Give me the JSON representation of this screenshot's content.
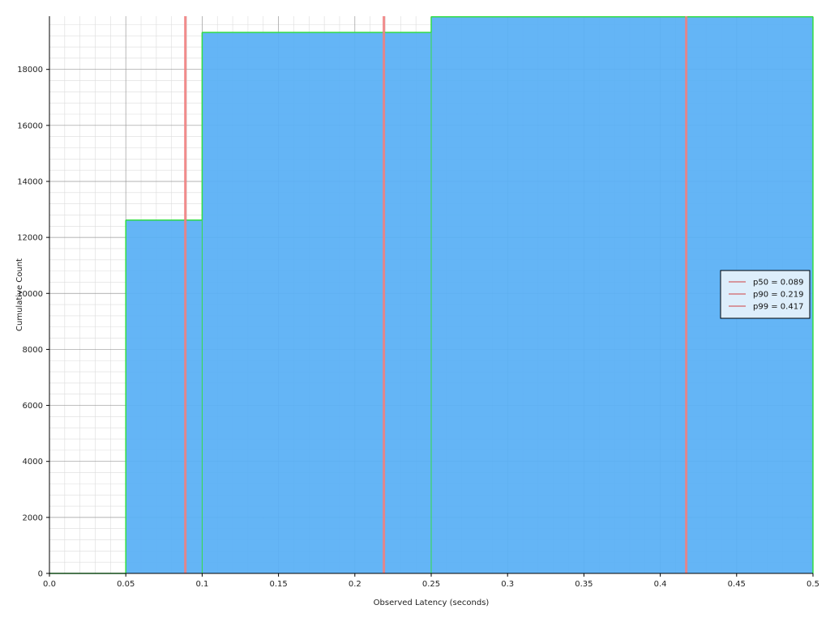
{
  "chart_data": {
    "type": "area",
    "step": true,
    "xlabel": "Observed Latency (seconds)",
    "ylabel": "Cumulative Count",
    "xlim": [
      0,
      0.5
    ],
    "ylim": [
      0,
      19900
    ],
    "x_ticks": [
      "0.0",
      "0.05",
      "0.1",
      "0.15",
      "0.2",
      "0.25",
      "0.3",
      "0.35",
      "0.4",
      "0.45",
      "0.5"
    ],
    "y_ticks": [
      "0",
      "2000",
      "4000",
      "6000",
      "8000",
      "10000",
      "12000",
      "14000",
      "16000",
      "18000"
    ],
    "grid": true,
    "buckets": [
      {
        "x_start": 0.0,
        "x_end": 0.05,
        "value": 0
      },
      {
        "x_start": 0.05,
        "x_end": 0.1,
        "value": 12620
      },
      {
        "x_start": 0.1,
        "x_end": 0.25,
        "value": 19320
      },
      {
        "x_start": 0.25,
        "x_end": 0.5,
        "value": 19880
      }
    ],
    "fill_color": "#58aff5",
    "edge_color": "#33dd44",
    "percentile_color": "#f08080",
    "percentiles": [
      {
        "label": "p50 = 0.089",
        "x": 0.089
      },
      {
        "label": "p90 = 0.219",
        "x": 0.219
      },
      {
        "label": "p99 = 0.417",
        "x": 0.417
      }
    ],
    "legend_position": "right"
  }
}
